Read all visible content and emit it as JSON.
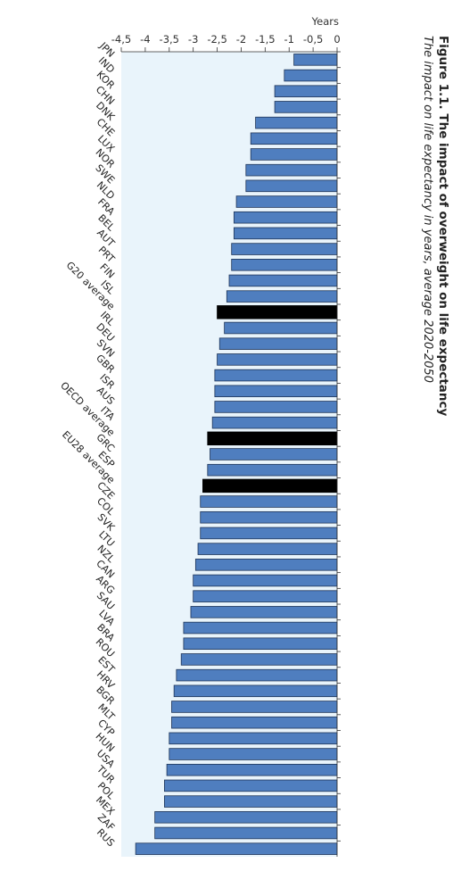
{
  "figure": {
    "title": "Figure 1.1. The impact of overweight on life expectancy",
    "subtitle": "The impact on life expectancy in years, average 2020-2050"
  },
  "chart_data": {
    "type": "bar",
    "orientation": "horizontal-negative",
    "ylabel": "Years",
    "ylim": [
      -4.5,
      0
    ],
    "yticks": [
      0,
      -0.5,
      -1,
      -1.5,
      -2,
      -2.5,
      -3,
      -3.5,
      -4,
      -4.5
    ],
    "ytick_labels": [
      "0",
      "-0,5",
      "-1",
      "-1,5",
      "-2",
      "-2,5",
      "-3",
      "-3,5",
      "-4",
      "-4,5"
    ],
    "grid": false,
    "plot_background": "#e9f4fb",
    "colors": {
      "bar": "#4f7ebf",
      "bar_edge": "#1f3558",
      "average": "#000000"
    },
    "categories": [
      "JPN",
      "IND",
      "KOR",
      "CHN",
      "DNK",
      "CHE",
      "LUX",
      "NOR",
      "SWE",
      "NLD",
      "FRA",
      "BEL",
      "AUT",
      "PRT",
      "FIN",
      "ISL",
      "G20 average",
      "IRL",
      "DEU",
      "SVN",
      "GBR",
      "ISR",
      "AUS",
      "ITA",
      "OECD average",
      "GRC",
      "ESP",
      "EU28 average",
      "CZE",
      "COL",
      "SVK",
      "LTU",
      "NZL",
      "CAN",
      "ARG",
      "SAU",
      "LVA",
      "BRA",
      "ROU",
      "EST",
      "HRV",
      "BGR",
      "MLT",
      "CYP",
      "HUN",
      "USA",
      "TUR",
      "POL",
      "MEX",
      "ZAF",
      "RUS"
    ],
    "values": [
      -0.9,
      -1.1,
      -1.3,
      -1.3,
      -1.7,
      -1.8,
      -1.8,
      -1.9,
      -1.9,
      -2.1,
      -2.15,
      -2.15,
      -2.2,
      -2.2,
      -2.25,
      -2.3,
      -2.5,
      -2.35,
      -2.45,
      -2.5,
      -2.55,
      -2.55,
      -2.55,
      -2.6,
      -2.7,
      -2.65,
      -2.7,
      -2.8,
      -2.85,
      -2.85,
      -2.85,
      -2.9,
      -2.95,
      -3.0,
      -3.0,
      -3.05,
      -3.2,
      -3.2,
      -3.25,
      -3.35,
      -3.4,
      -3.45,
      -3.45,
      -3.5,
      -3.5,
      -3.55,
      -3.6,
      -3.6,
      -3.8,
      -3.8,
      -4.2
    ],
    "highlighted": [
      "G20 average",
      "OECD average",
      "EU28 average"
    ]
  }
}
